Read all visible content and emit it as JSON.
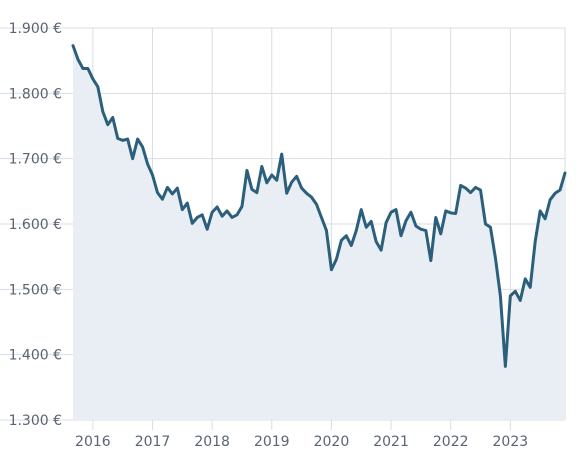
{
  "chart_data": {
    "type": "area",
    "title": "",
    "xlabel": "",
    "ylabel": "",
    "ylim": [
      1300,
      1900
    ],
    "y_ticks": [
      {
        "value": 1900,
        "label": "1.900 €"
      },
      {
        "value": 1800,
        "label": "1.800 €"
      },
      {
        "value": 1700,
        "label": "1.700 €"
      },
      {
        "value": 1600,
        "label": "1.600 €"
      },
      {
        "value": 1500,
        "label": "1.500 €"
      },
      {
        "value": 1400,
        "label": "1.400 €"
      },
      {
        "value": 1300,
        "label": "1.300 €"
      }
    ],
    "x_range": [
      "2015-09",
      "2023-12"
    ],
    "x_ticks": [
      {
        "value": "2016-01",
        "label": "2016"
      },
      {
        "value": "2017-01",
        "label": "2017"
      },
      {
        "value": "2018-01",
        "label": "2018"
      },
      {
        "value": "2019-01",
        "label": "2019"
      },
      {
        "value": "2020-01",
        "label": "2020"
      },
      {
        "value": "2021-01",
        "label": "2021"
      },
      {
        "value": "2022-01",
        "label": "2022"
      },
      {
        "value": "2023-01",
        "label": "2023"
      }
    ],
    "grid": true,
    "colors": {
      "line": "#2b5f7c",
      "fill": "#e8eef3",
      "grid": "#d9dde2",
      "tick_text": "#5a6472"
    },
    "series": [
      {
        "x": [
          "2015-09",
          "2015-10",
          "2015-11",
          "2015-12",
          "2016-01",
          "2016-02",
          "2016-03",
          "2016-04",
          "2016-05",
          "2016-06",
          "2016-07",
          "2016-08",
          "2016-09",
          "2016-10",
          "2016-11",
          "2016-12",
          "2017-01",
          "2017-02",
          "2017-03",
          "2017-04",
          "2017-05",
          "2017-06",
          "2017-07",
          "2017-08",
          "2017-09",
          "2017-10",
          "2017-11",
          "2017-12",
          "2018-01",
          "2018-02",
          "2018-03",
          "2018-04",
          "2018-05",
          "2018-06",
          "2018-07",
          "2018-08",
          "2018-09",
          "2018-10",
          "2018-11",
          "2018-12",
          "2019-01",
          "2019-02",
          "2019-03",
          "2019-04",
          "2019-05",
          "2019-06",
          "2019-07",
          "2019-08",
          "2019-09",
          "2019-10",
          "2019-11",
          "2019-12",
          "2020-01",
          "2020-02",
          "2020-03",
          "2020-04",
          "2020-05",
          "2020-06",
          "2020-07",
          "2020-08",
          "2020-09",
          "2020-10",
          "2020-11",
          "2020-12",
          "2021-01",
          "2021-02",
          "2021-03",
          "2021-04",
          "2021-05",
          "2021-06",
          "2021-07",
          "2021-08",
          "2021-09",
          "2021-10",
          "2021-11",
          "2021-12",
          "2022-01",
          "2022-02",
          "2022-03",
          "2022-04",
          "2022-05",
          "2022-06",
          "2022-07",
          "2022-08",
          "2022-09",
          "2022-10",
          "2022-11",
          "2022-12",
          "2023-01",
          "2023-02",
          "2023-03",
          "2023-04",
          "2023-05",
          "2023-06",
          "2023-07",
          "2023-08",
          "2023-09",
          "2023-10",
          "2023-11",
          "2023-12"
        ],
        "values": [
          1873,
          1852,
          1838,
          1838,
          1822,
          1810,
          1772,
          1752,
          1763,
          1731,
          1728,
          1730,
          1700,
          1730,
          1718,
          1692,
          1675,
          1648,
          1638,
          1656,
          1646,
          1655,
          1622,
          1632,
          1601,
          1610,
          1614,
          1592,
          1618,
          1626,
          1612,
          1620,
          1610,
          1614,
          1627,
          1682,
          1653,
          1648,
          1688,
          1663,
          1675,
          1667,
          1707,
          1647,
          1664,
          1673,
          1655,
          1647,
          1641,
          1630,
          1610,
          1590,
          1530,
          1546,
          1575,
          1582,
          1567,
          1590,
          1622,
          1595,
          1604,
          1573,
          1560,
          1602,
          1618,
          1622,
          1582,
          1605,
          1618,
          1597,
          1592,
          1590,
          1544,
          1610,
          1585,
          1620,
          1617,
          1616,
          1659,
          1655,
          1648,
          1656,
          1652,
          1600,
          1595,
          1548,
          1490,
          1382,
          1490,
          1497,
          1483,
          1516,
          1503,
          1573,
          1620,
          1608,
          1637,
          1647,
          1652,
          1678
        ]
      }
    ]
  }
}
